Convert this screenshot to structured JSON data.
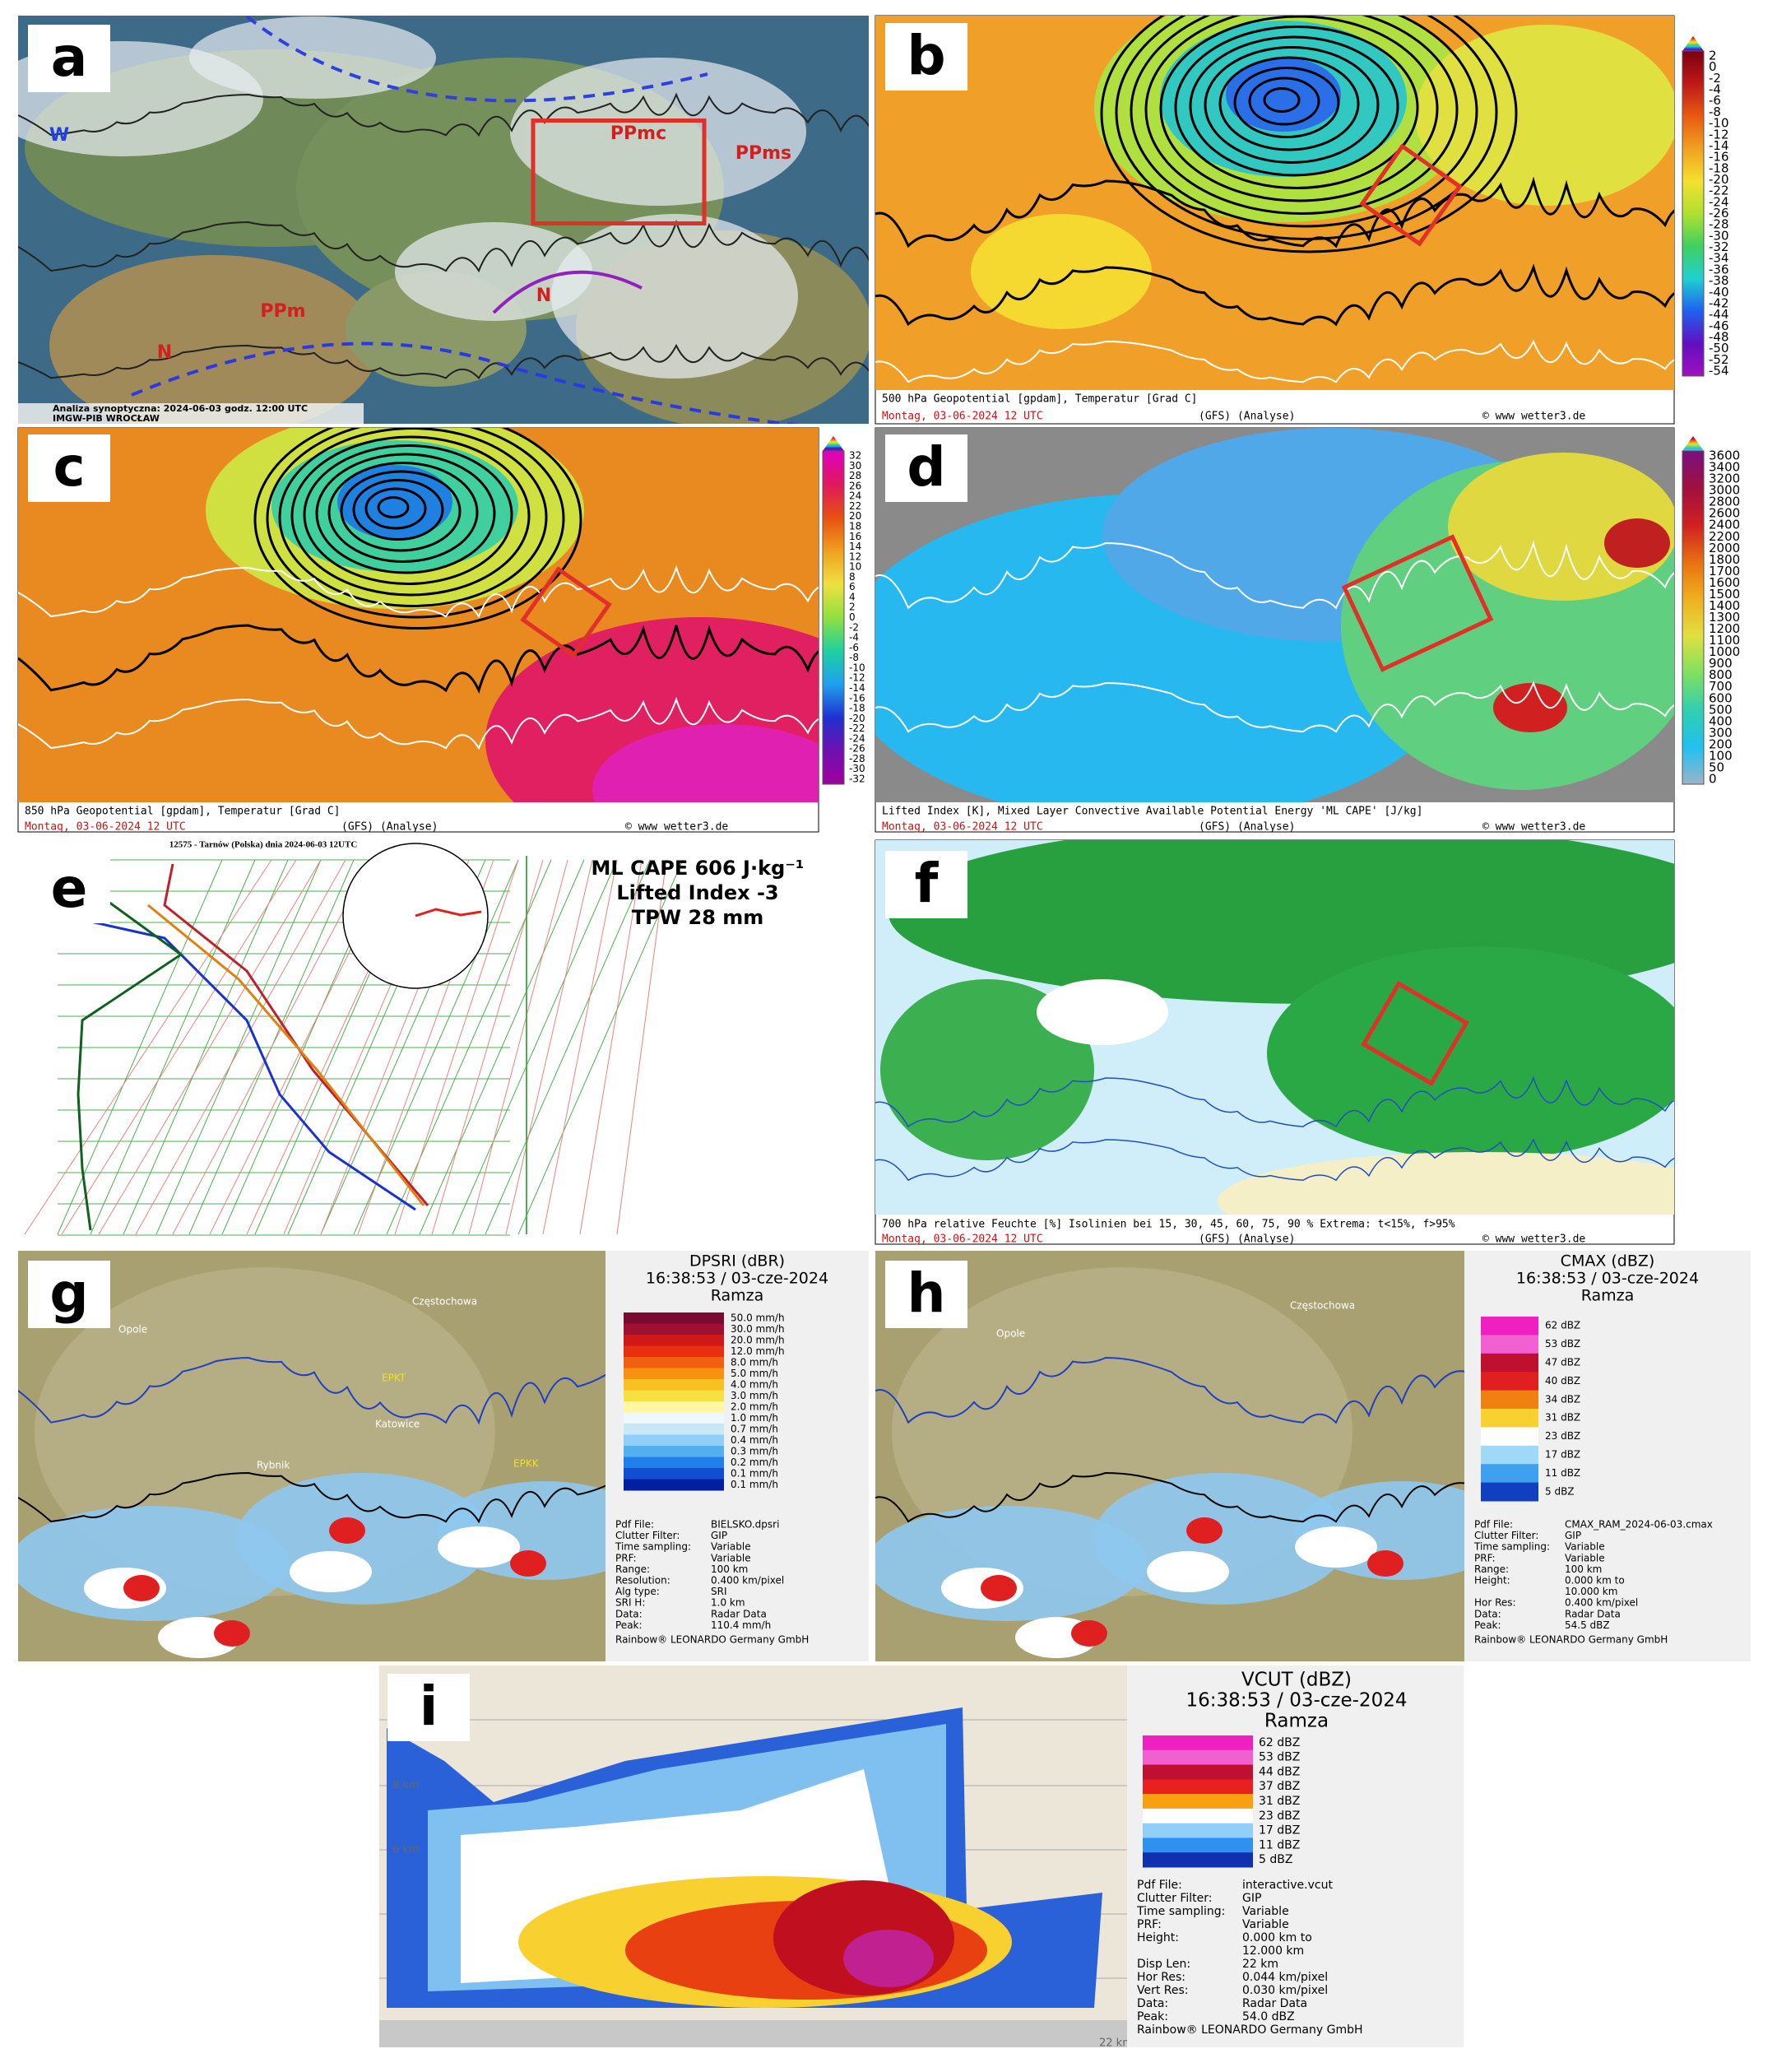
{
  "panels": {
    "a": {
      "letter": "a",
      "labels": [
        "PPmc",
        "PPms",
        "PPm",
        "W",
        "N",
        "N"
      ],
      "footer": [
        "Analiza synoptyczna: 2024-06-03 godz. 12:00 UTC",
        "IMGW-PIB WROCŁAW"
      ]
    },
    "b": {
      "letter": "b",
      "footer": [
        "500 hPa Geopotential [gpdam], Temperatur [Grad C]",
        "Montag, 03-06-2024   12 UTC",
        "(GFS)   (Analyse)",
        "© www wetter3.de"
      ],
      "scale": [
        "2",
        "0",
        "-2",
        "-4",
        "-6",
        "-8",
        "-10",
        "-12",
        "-14",
        "-16",
        "-18",
        "-20",
        "-22",
        "-24",
        "-26",
        "-28",
        "-30",
        "-32",
        "-34",
        "-36",
        "-38",
        "-40",
        "-42",
        "-44",
        "-46",
        "-48",
        "-50",
        "-52",
        "-54"
      ]
    },
    "c": {
      "letter": "c",
      "footer": [
        "850 hPa Geopotential [gpdam], Temperatur [Grad C]",
        "Montag, 03-06-2024   12 UTC",
        "(GFS)   (Analyse)",
        "© www wetter3.de"
      ],
      "scale": [
        "32",
        "30",
        "28",
        "26",
        "24",
        "22",
        "20",
        "18",
        "16",
        "14",
        "12",
        "10",
        "8",
        "6",
        "4",
        "2",
        "0",
        "-2",
        "-4",
        "-6",
        "-8",
        "-10",
        "-12",
        "-14",
        "-16",
        "-18",
        "-20",
        "-22",
        "-24",
        "-26",
        "-28",
        "-30",
        "-32"
      ]
    },
    "d": {
      "letter": "d",
      "footer": [
        "Lifted Index [K], Mixed Layer Convective Available Potential Energy 'ML CAPE' [J/kg]",
        "Montag, 03-06-2024   12 UTC",
        "(GFS)   (Analyse)",
        "© www wetter3.de"
      ],
      "scale": [
        "3600",
        "3400",
        "3200",
        "3000",
        "2800",
        "2600",
        "2400",
        "2200",
        "2000",
        "1800",
        "1700",
        "1600",
        "1500",
        "1400",
        "1300",
        "1200",
        "1100",
        "1000",
        "900",
        "800",
        "700",
        "600",
        "500",
        "400",
        "300",
        "200",
        "100",
        "50",
        "0"
      ]
    },
    "e": {
      "letter": "e",
      "title": "12575 - Tarnów (Polska) dnia 2024-06-03 12UTC",
      "text": [
        "ML CAPE 606 J·kg⁻¹",
        "Lifted Index -3",
        "TPW 28 mm"
      ]
    },
    "f": {
      "letter": "f",
      "footer": [
        "700 hPa relative Feuchte [%] Isolinien bei 15, 30, 45, 60, 75, 90 %   Extrema: t<15%, f>95%",
        "Montag, 03-06-2024   12 UTC",
        "(GFS)   (Analyse)",
        "© www wetter3.de"
      ]
    },
    "g": {
      "letter": "g",
      "title": [
        "DPSRI (dBR)",
        "16:38:53 / 03-cze-2024",
        "Ramza"
      ],
      "legend": [
        "50.0 mm/h",
        "30.0 mm/h",
        "20.0 mm/h",
        "12.0 mm/h",
        "8.0 mm/h",
        "5.0 mm/h",
        "4.0 mm/h",
        "3.0 mm/h",
        "2.0 mm/h",
        "1.0 mm/h",
        "0.7 mm/h",
        "0.4 mm/h",
        "0.3 mm/h",
        "0.2 mm/h",
        "0.1 mm/h",
        "0.1 mm/h"
      ],
      "info": [
        [
          "Pdf File:",
          "BIELSKO.dpsri"
        ],
        [
          "Clutter Filter:",
          "GIP"
        ],
        [
          "Time sampling:",
          "Variable"
        ],
        [
          "PRF:",
          "Variable"
        ],
        [
          "Range:",
          "100 km"
        ],
        [
          "Resolution:",
          "0.400 km/pixel"
        ],
        [
          "Alg type:",
          "SRI"
        ],
        [
          "SRI H:",
          "1.0 km"
        ],
        [
          "Data:",
          "Radar Data"
        ],
        [
          "Peak:",
          "110.4 mm/h"
        ]
      ],
      "credit": "Rainbow® LEONARDO Germany GmbH",
      "places": [
        "Częstochowa",
        "Opole",
        "Katowice",
        "Rybnik",
        "EPKT",
        "EPKK"
      ]
    },
    "h": {
      "letter": "h",
      "title": [
        "CMAX (dBZ)",
        "16:38:53 / 03-cze-2024",
        "Ramza"
      ],
      "legend": [
        "62 dBZ",
        "53 dBZ",
        "47 dBZ",
        "40 dBZ",
        "34 dBZ",
        "31 dBZ",
        "23 dBZ",
        "17 dBZ",
        "11 dBZ",
        "5 dBZ"
      ],
      "info": [
        [
          "Pdf File:",
          "CMAX_RAM_2024-06-03.cmax"
        ],
        [
          "Clutter Filter:",
          "GIP"
        ],
        [
          "Time sampling:",
          "Variable"
        ],
        [
          "PRF:",
          "Variable"
        ],
        [
          "Range:",
          "100 km"
        ],
        [
          "Height:",
          "0.000 km to"
        ],
        [
          "",
          "10.000 km"
        ],
        [
          "Hor Res:",
          "0.400 km/pixel"
        ],
        [
          "Data:",
          "Radar Data"
        ],
        [
          "Peak:",
          "54.5 dBZ"
        ]
      ],
      "credit": "Rainbow® LEONARDO Germany GmbH",
      "places": [
        "Częstochowa",
        "Opole"
      ]
    },
    "i": {
      "letter": "i",
      "title": [
        "VCUT (dBZ)",
        "16:38:53 / 03-cze-2024",
        "Ramza"
      ],
      "legend": [
        "62 dBZ",
        "53 dBZ",
        "44 dBZ",
        "37 dBZ",
        "31 dBZ",
        "23 dBZ",
        "17 dBZ",
        "11 dBZ",
        "5 dBZ"
      ],
      "info": [
        [
          "Pdf File:",
          "interactive.vcut"
        ],
        [
          "Clutter Filter:",
          "GIP"
        ],
        [
          "Time sampling:",
          "Variable"
        ],
        [
          "PRF:",
          "Variable"
        ],
        [
          "Height:",
          "0.000 km to"
        ],
        [
          "",
          "12.000 km"
        ],
        [
          "Disp Len:",
          "22 km"
        ],
        [
          "Hor Res:",
          "0.044 km/pixel"
        ],
        [
          "Vert Res:",
          "0.030 km/pixel"
        ],
        [
          "Data:",
          "Radar Data"
        ],
        [
          "Peak:",
          "54.0 dBZ"
        ]
      ],
      "credit": "Rainbow® LEONARDO Germany GmbH",
      "axis": [
        "8 km",
        "6 km",
        "22 km"
      ]
    }
  }
}
